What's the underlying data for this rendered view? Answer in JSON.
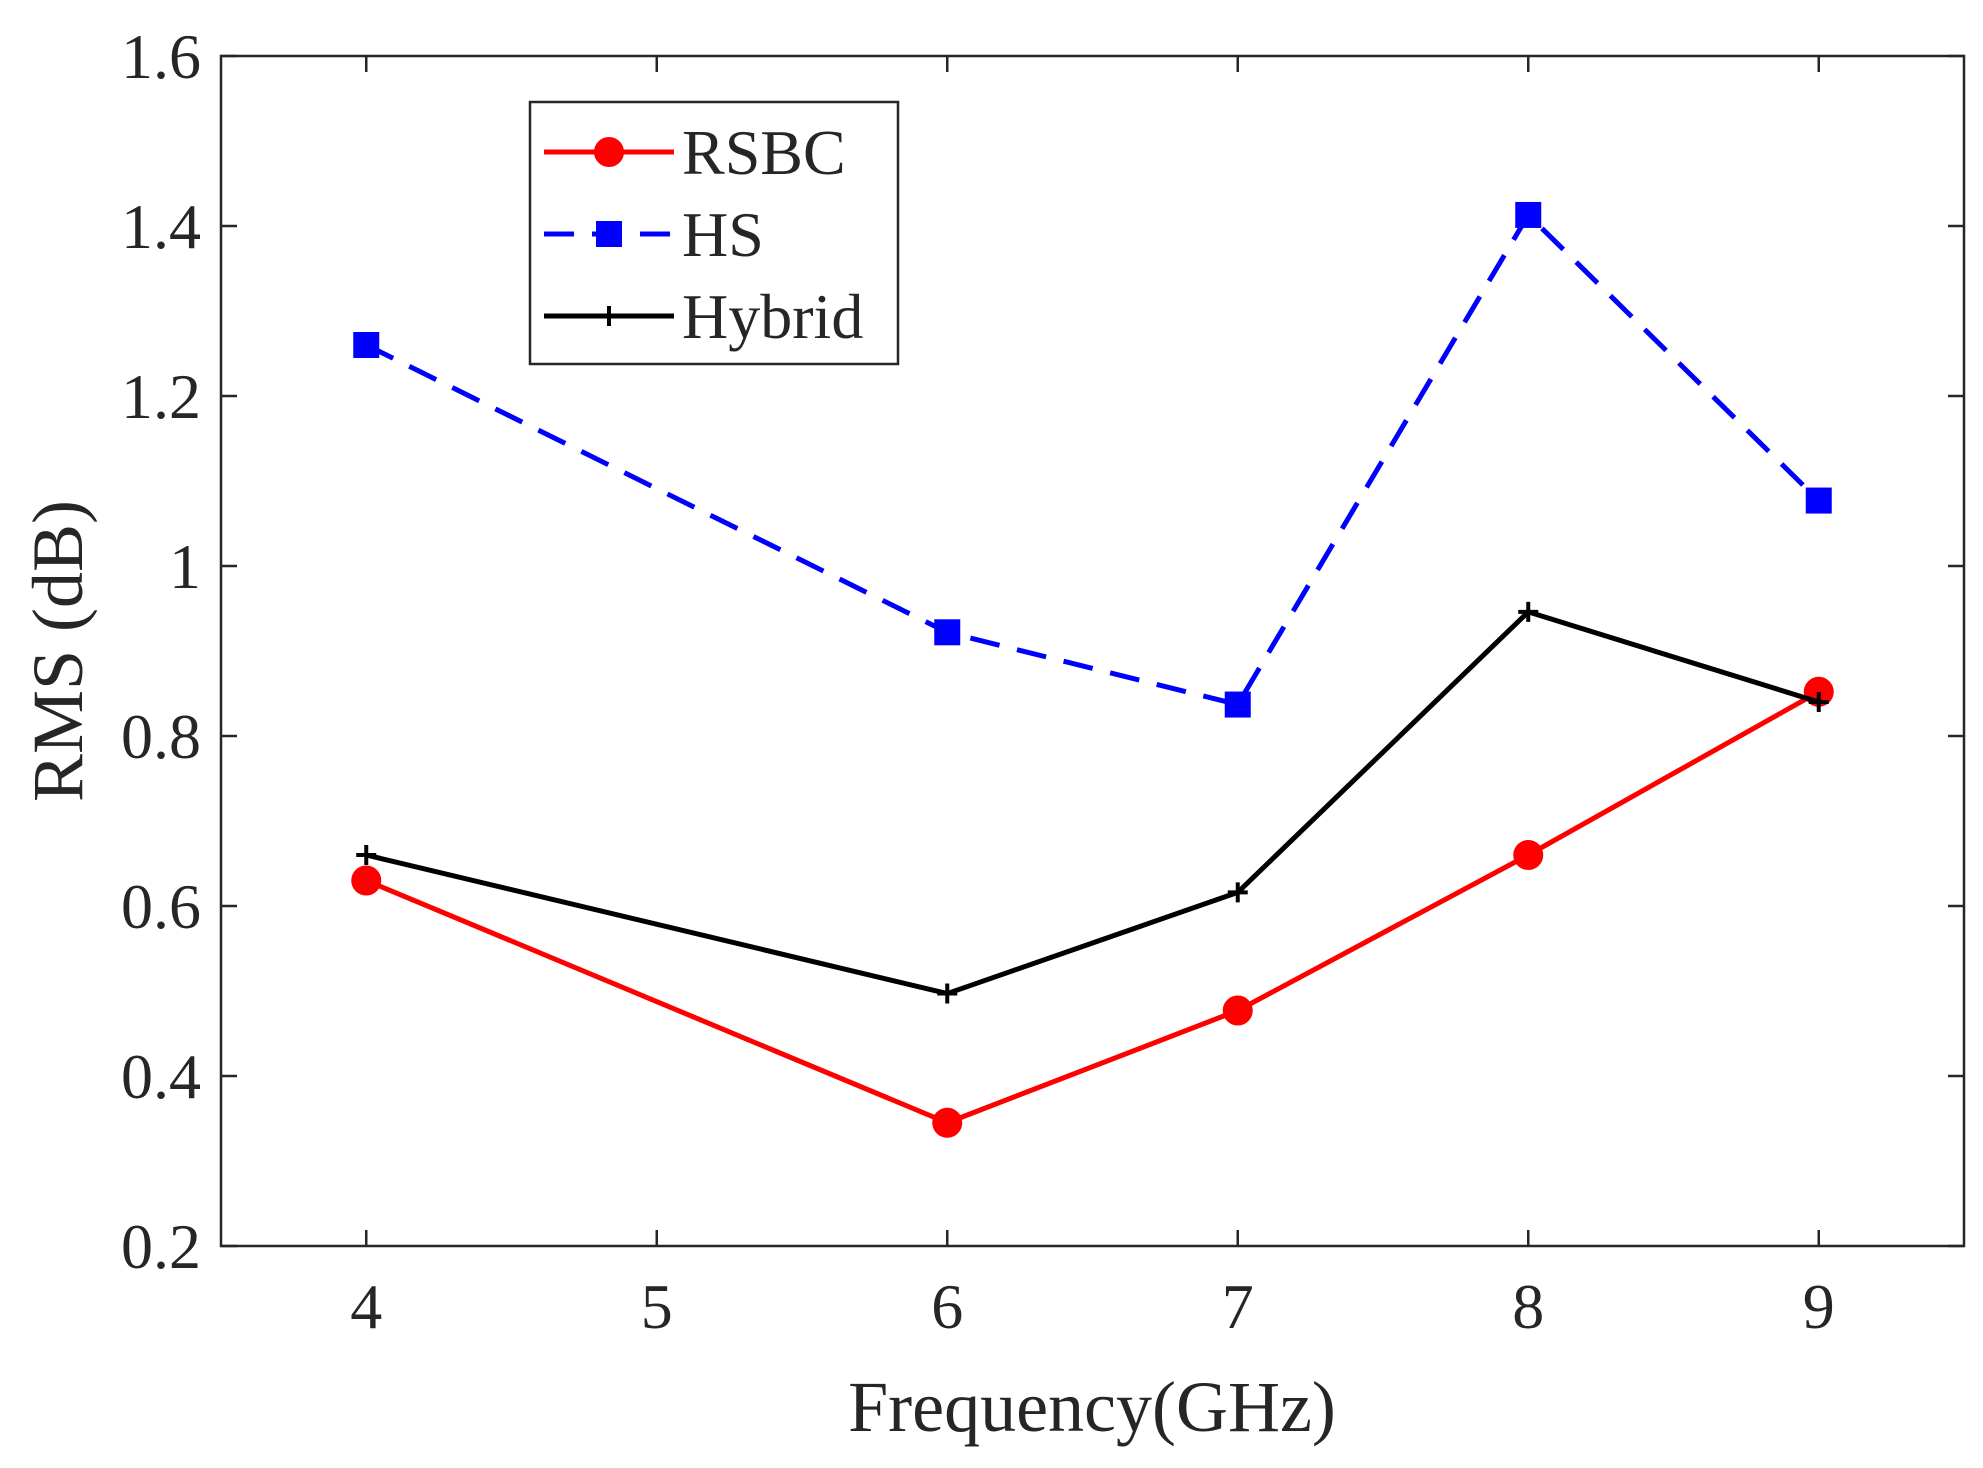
{
  "chart_data": {
    "type": "line",
    "title": "",
    "xlabel": "Frequency(GHz)",
    "ylabel": "RMS (dB)",
    "xlim": [
      3.5,
      9.5
    ],
    "ylim": [
      0.2,
      1.6
    ],
    "x_ticks": [
      "4",
      "5",
      "6",
      "7",
      "8",
      "9"
    ],
    "y_ticks": [
      "0.2",
      "0.4",
      "0.6",
      "0.8",
      "1",
      "1.2",
      "1.4",
      "1.6"
    ],
    "legend_position": "top-left",
    "series": [
      {
        "name": "RSBC",
        "color": "#ff0000",
        "line_style": "solid",
        "marker": "circle",
        "x": [
          4,
          6,
          7,
          8,
          9
        ],
        "values": [
          0.63,
          0.345,
          0.477,
          0.66,
          0.852
        ]
      },
      {
        "name": "HS",
        "color": "#0000ff",
        "line_style": "dashed",
        "marker": "square",
        "x": [
          4,
          6,
          7,
          8,
          9
        ],
        "values": [
          1.26,
          0.922,
          0.837,
          1.413,
          1.077
        ]
      },
      {
        "name": "Hybrid",
        "color": "#000000",
        "line_style": "solid",
        "marker": "plus",
        "x": [
          4,
          6,
          7,
          8,
          9
        ],
        "values": [
          0.66,
          0.497,
          0.616,
          0.946,
          0.84
        ]
      }
    ]
  }
}
